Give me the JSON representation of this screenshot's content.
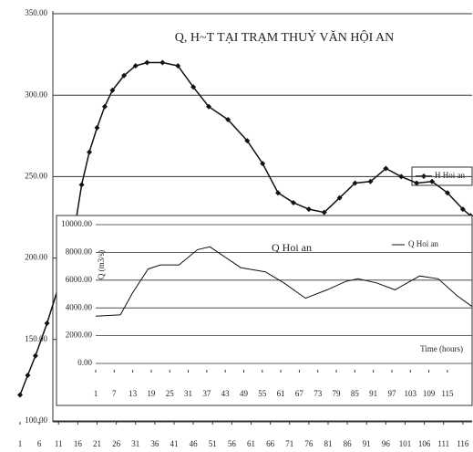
{
  "chart_data": [
    {
      "type": "line",
      "title": "Q, H~T TẠI TRẠM THUỶ VĂN HỘI AN",
      "x": [
        1,
        3,
        5,
        8,
        12,
        15,
        17,
        19,
        21,
        23,
        25,
        28,
        31,
        34,
        38,
        42,
        46,
        50,
        55,
        60,
        64,
        68,
        72,
        76,
        80,
        84,
        88,
        92,
        96,
        100,
        104,
        108,
        112,
        116,
        118
      ],
      "series": [
        {
          "name": "H Hoi an",
          "color": "#111111",
          "values": [
            116,
            128,
            140,
            160,
            190,
            215,
            245,
            265,
            280,
            293,
            303,
            312,
            318,
            320,
            320,
            318,
            305,
            293,
            285,
            272,
            258,
            240,
            234,
            230,
            228,
            237,
            246,
            247,
            255,
            250,
            246,
            247,
            240,
            230,
            226
          ]
        }
      ],
      "xlim": [
        1,
        118.4
      ],
      "xticks": [
        1,
        6,
        11,
        16,
        21,
        26,
        31,
        36,
        41,
        46,
        51,
        56,
        61,
        66,
        71,
        76,
        81,
        86,
        91,
        96,
        101,
        106,
        111,
        116
      ],
      "ylim": [
        100,
        350
      ],
      "yticks": [
        {
          "value": 100,
          "label": "100.00"
        },
        {
          "value": 150,
          "label": "150.00"
        },
        {
          "value": 200,
          "label": "200.00"
        },
        {
          "value": 250,
          "label": "250.00"
        },
        {
          "value": 300,
          "label": "300.00"
        },
        {
          "value": 350,
          "label": "350.00"
        }
      ],
      "grid": true,
      "legend": "right",
      "markers": true
    },
    {
      "type": "line",
      "title": "Q Hoi an",
      "x_label": "Time (hours)",
      "y_label": "Q (m3/s)",
      "x": [
        1,
        9,
        13,
        18,
        22,
        28,
        34,
        38,
        42,
        48,
        56,
        62,
        69,
        76,
        82,
        86,
        92,
        98,
        106,
        112,
        118,
        123
      ],
      "series": [
        {
          "name": "Q Hoi an",
          "color": "#111111",
          "values": [
            3400,
            3500,
            5100,
            6800,
            7100,
            7100,
            8200,
            8400,
            7800,
            6900,
            6600,
            5800,
            4700,
            5300,
            5900,
            6100,
            5800,
            5300,
            6300,
            6100,
            4900,
            4100
          ]
        }
      ],
      "xlim": [
        1,
        123
      ],
      "xticks": [
        1,
        7,
        13,
        19,
        25,
        31,
        37,
        43,
        49,
        55,
        61,
        67,
        73,
        79,
        85,
        91,
        97,
        103,
        109,
        115
      ],
      "ylim": [
        0,
        10000
      ],
      "yticks": [
        {
          "value": 0,
          "label": "0.00"
        },
        {
          "value": 2000,
          "label": "2000.00"
        },
        {
          "value": 4000,
          "label": "4000.00"
        },
        {
          "value": 6000,
          "label": "6000.00"
        },
        {
          "value": 8000,
          "label": "8000.00"
        },
        {
          "value": 10000,
          "label": "10000.00"
        }
      ],
      "grid": true,
      "legend": "top-right",
      "markers": false
    }
  ]
}
